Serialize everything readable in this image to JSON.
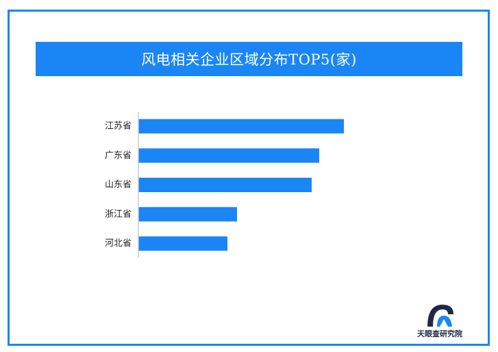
{
  "title": "风电相关企业区域分布TOP5(家)",
  "brand": {
    "name": "天眼查研究院",
    "logo_icon": "tianyancha-logo-icon"
  },
  "colors": {
    "accent": "#1a86f5",
    "bar": "#1a86f5",
    "axis": "#cccccc",
    "label": "#222222"
  },
  "chart_data": {
    "type": "bar",
    "orientation": "horizontal",
    "title": "风电相关企业区域分布TOP5(家)",
    "categories": [
      "江苏省",
      "广东省",
      "山东省",
      "浙江省",
      "河北省"
    ],
    "values": [
      300,
      264,
      253,
      144,
      130
    ],
    "value_labels_shown": false,
    "xlabel": "",
    "ylabel": "",
    "grid": false,
    "legend": "none"
  }
}
